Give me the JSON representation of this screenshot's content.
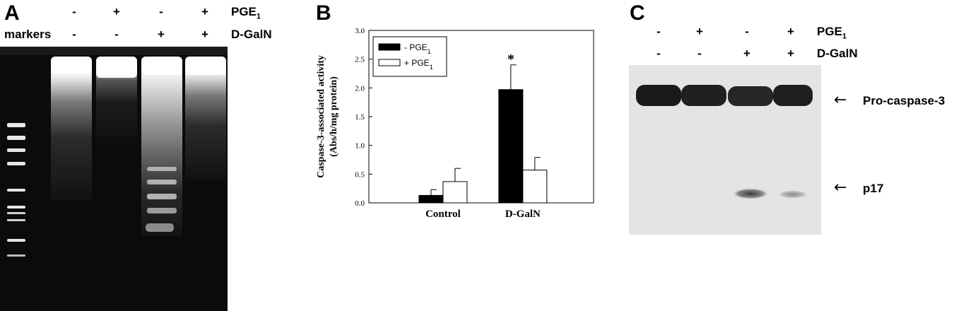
{
  "panelA": {
    "letter": "A",
    "row1": {
      "signs": [
        "-",
        "+",
        "-",
        "+"
      ],
      "label_main": "PGE",
      "label_sub": "1"
    },
    "row2": {
      "lead": "markers",
      "lead_sign": "-",
      "signs": [
        "-",
        "+",
        "+"
      ],
      "label": "D-GalN"
    }
  },
  "panelB": {
    "letter": "B",
    "chart_data": {
      "type": "bar",
      "categories": [
        "Control",
        "D-GalN"
      ],
      "series": [
        {
          "name": "- PGE1",
          "values": [
            0.13,
            1.97
          ],
          "errors": [
            0.1,
            0.43
          ],
          "color": "#000000"
        },
        {
          "name": "+ PGE1",
          "values": [
            0.37,
            0.57
          ],
          "errors": [
            0.23,
            0.22
          ],
          "color": "#ffffff"
        }
      ],
      "ylabel_line1": "Caspase-3-associated activity",
      "ylabel_line2": "(Abs/h/mg protein)",
      "ylim": [
        0,
        3.0
      ],
      "yticks": [
        "0.0",
        "0.5",
        "1.0",
        "1.5",
        "2.0",
        "2.5",
        "3.0"
      ],
      "annotation": "*",
      "legend_placement": "top-left",
      "legend": [
        {
          "main": "- PGE",
          "sub": "1"
        },
        {
          "main": "+ PGE",
          "sub": "1"
        }
      ]
    }
  },
  "panelC": {
    "letter": "C",
    "row1": {
      "signs": [
        "-",
        "+",
        "-",
        "+"
      ],
      "label_main": "PGE",
      "label_sub": "1"
    },
    "row2": {
      "signs": [
        "-",
        "-",
        "+",
        "+"
      ],
      "label": "D-GalN"
    },
    "band_labels": {
      "upper": "Pro-caspase-3",
      "lower": "p17"
    },
    "arrow": "←"
  }
}
